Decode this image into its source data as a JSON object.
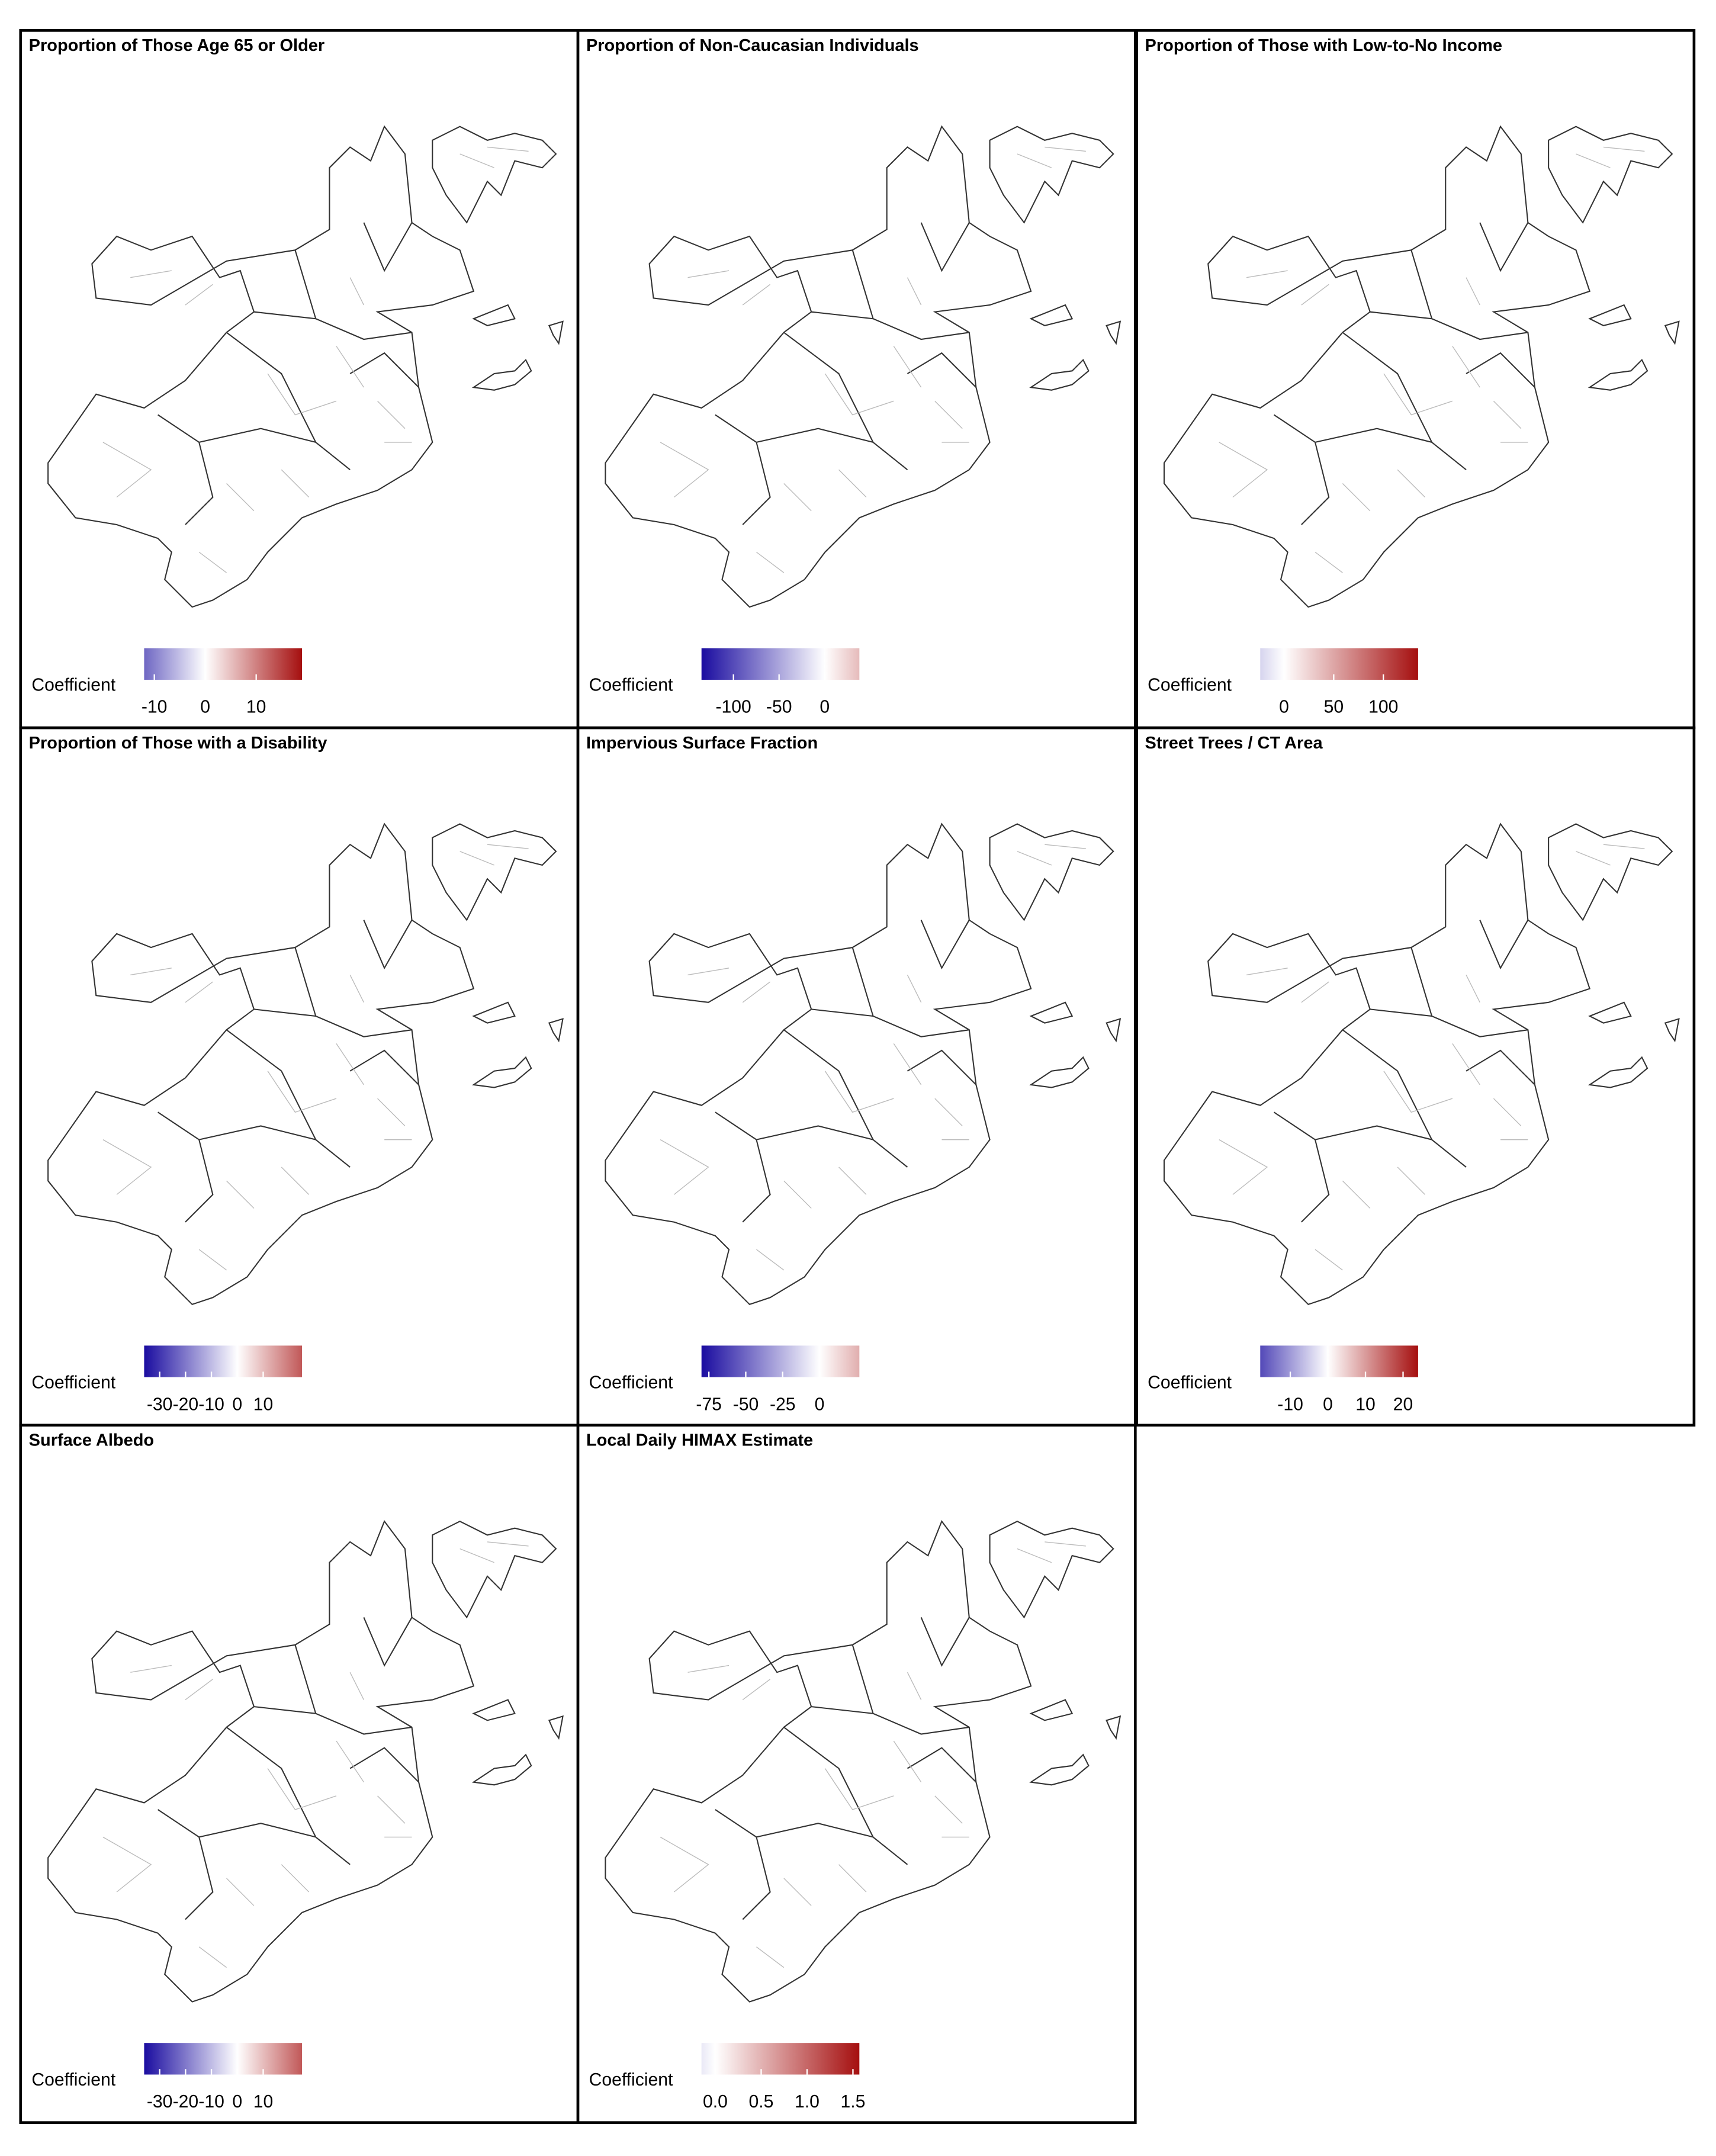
{
  "legend_label": "Coefficient",
  "cmap": [
    "#1a0ca0",
    "#ffffff",
    "#a50f0f"
  ],
  "panels": [
    {
      "title": "Proportion of Those Age 65 or Older",
      "lim": [
        -12,
        19
      ],
      "ticks": [
        -10,
        0,
        10
      ]
    },
    {
      "title": "Proportion of Non-Caucasian Individuals",
      "lim": [
        -135,
        38
      ],
      "ticks": [
        -100,
        -50,
        0
      ]
    },
    {
      "title": "Proportion of Those with Low-to-No Income",
      "lim": [
        -24,
        135
      ],
      "ticks": [
        0,
        50,
        100
      ]
    },
    {
      "title": "Proportion of Those with a Disability",
      "lim": [
        -36,
        25
      ],
      "ticks": [
        -30,
        -20,
        -10,
        0,
        10
      ]
    },
    {
      "title": "Impervious Surface Fraction",
      "lim": [
        -80,
        27
      ],
      "ticks": [
        -75,
        -50,
        -25,
        0
      ]
    },
    {
      "title": "Street Trees / CT Area",
      "lim": [
        -18,
        24
      ],
      "ticks": [
        -10,
        0,
        10,
        20
      ]
    },
    {
      "title": "Surface Albedo",
      "lim": [
        -36,
        25
      ],
      "ticks": [
        -30,
        -20,
        -10,
        0,
        10
      ]
    },
    {
      "title": "Local Daily HIMAX Estimate",
      "lim": [
        -0.15,
        1.57
      ],
      "ticks": [
        {
          "value": 0,
          "label": "0.0"
        },
        0.5,
        {
          "value": 1,
          "label": "1.0"
        },
        1.5
      ]
    }
  ]
}
